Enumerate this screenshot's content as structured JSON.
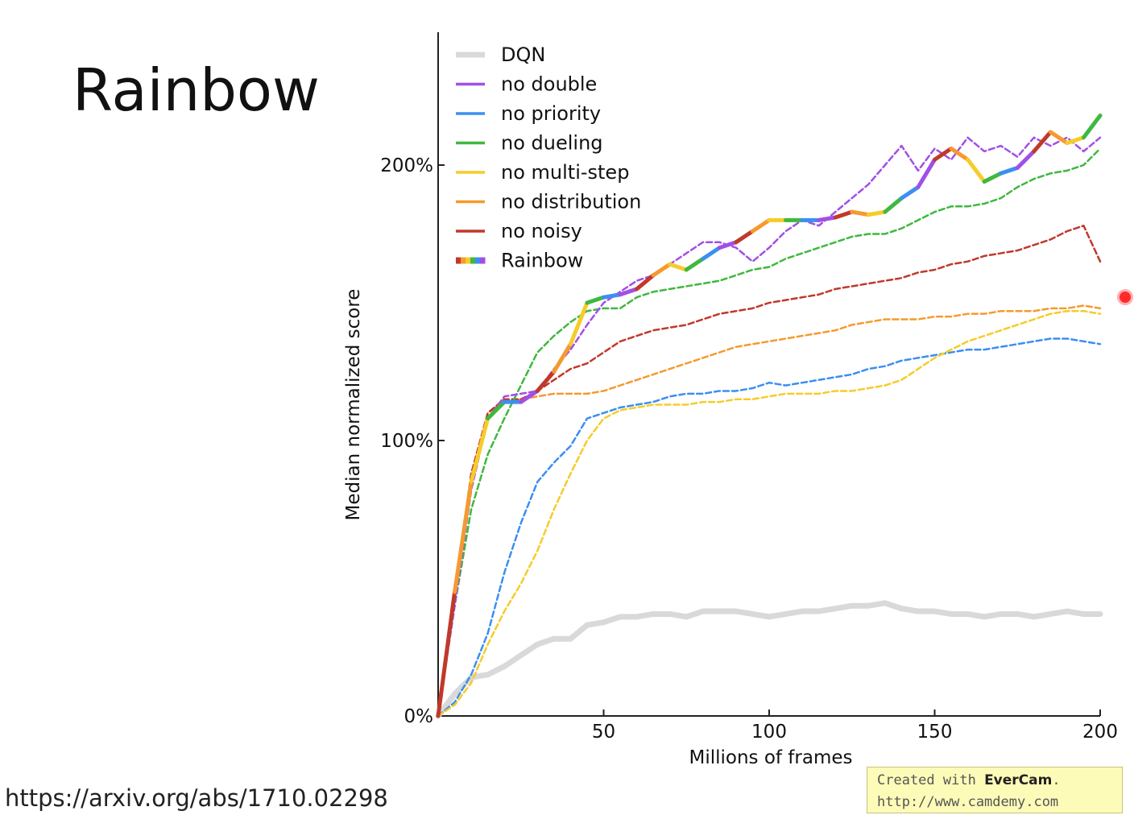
{
  "slide": {
    "title": "Rainbow",
    "source_link": "https://arxiv.org/abs/1710.02298"
  },
  "watermark": {
    "prefix": "Created with ",
    "brand": "EverCam",
    "suffix": ".",
    "url": "http://www.camdemy.com"
  },
  "chart_data": {
    "type": "line",
    "xlabel": "Millions of frames",
    "ylabel": "Median normalized score",
    "xlim": [
      0,
      200
    ],
    "ylim": [
      0,
      240
    ],
    "xticks": [
      50,
      100,
      150,
      200
    ],
    "yticks": [
      0,
      100,
      200
    ],
    "ytick_labels": [
      "0%",
      "100%",
      "200%"
    ],
    "grid": false,
    "legend_position": "top-left",
    "series": [
      {
        "name": "DQN",
        "color": "#d9d9d9",
        "style": "solid-thick",
        "x": [
          0,
          5,
          10,
          15,
          20,
          25,
          30,
          35,
          40,
          45,
          50,
          55,
          60,
          65,
          70,
          75,
          80,
          85,
          90,
          95,
          100,
          105,
          110,
          115,
          120,
          125,
          130,
          135,
          140,
          145,
          150,
          155,
          160,
          165,
          170,
          175,
          180,
          185,
          190,
          195,
          200
        ],
        "y": [
          0,
          8,
          14,
          15,
          18,
          22,
          26,
          28,
          28,
          33,
          34,
          36,
          36,
          37,
          37,
          36,
          38,
          38,
          38,
          37,
          36,
          37,
          38,
          38,
          39,
          40,
          40,
          41,
          39,
          38,
          38,
          37,
          37,
          36,
          37,
          37,
          36,
          37,
          38,
          37,
          37
        ]
      },
      {
        "name": "no double",
        "color": "#a14fe6",
        "style": "dashed",
        "x": [
          0,
          5,
          10,
          15,
          20,
          25,
          30,
          35,
          40,
          45,
          50,
          55,
          60,
          65,
          70,
          75,
          80,
          85,
          90,
          95,
          100,
          105,
          110,
          115,
          120,
          125,
          130,
          135,
          140,
          145,
          150,
          155,
          160,
          165,
          170,
          175,
          180,
          185,
          190,
          195,
          200
        ],
        "y": [
          0,
          40,
          82,
          108,
          116,
          117,
          118,
          126,
          133,
          142,
          150,
          154,
          158,
          160,
          164,
          168,
          172,
          172,
          170,
          165,
          170,
          176,
          180,
          178,
          183,
          188,
          193,
          200,
          207,
          198,
          206,
          202,
          210,
          205,
          207,
          203,
          210,
          207,
          210,
          205,
          210
        ]
      },
      {
        "name": "no priority",
        "color": "#3b8ff0",
        "style": "dashed",
        "x": [
          0,
          5,
          10,
          15,
          20,
          25,
          30,
          35,
          40,
          45,
          50,
          55,
          60,
          65,
          70,
          75,
          80,
          85,
          90,
          95,
          100,
          105,
          110,
          115,
          120,
          125,
          130,
          135,
          140,
          145,
          150,
          155,
          160,
          165,
          170,
          175,
          180,
          185,
          190,
          195,
          200
        ],
        "y": [
          0,
          5,
          15,
          30,
          52,
          70,
          85,
          92,
          98,
          108,
          110,
          112,
          113,
          114,
          116,
          117,
          117,
          118,
          118,
          119,
          121,
          120,
          121,
          122,
          123,
          124,
          126,
          127,
          129,
          130,
          131,
          132,
          133,
          133,
          134,
          135,
          136,
          137,
          137,
          136,
          135
        ]
      },
      {
        "name": "no dueling",
        "color": "#3fb83f",
        "style": "dashed",
        "x": [
          0,
          5,
          10,
          15,
          20,
          25,
          30,
          35,
          40,
          45,
          50,
          55,
          60,
          65,
          70,
          75,
          80,
          85,
          90,
          95,
          100,
          105,
          110,
          115,
          120,
          125,
          130,
          135,
          140,
          145,
          150,
          155,
          160,
          165,
          170,
          175,
          180,
          185,
          190,
          195,
          200
        ],
        "y": [
          0,
          40,
          75,
          95,
          108,
          120,
          132,
          138,
          143,
          147,
          148,
          148,
          152,
          154,
          155,
          156,
          157,
          158,
          160,
          162,
          163,
          166,
          168,
          170,
          172,
          174,
          175,
          175,
          177,
          180,
          183,
          185,
          185,
          186,
          188,
          192,
          195,
          197,
          198,
          200,
          206
        ]
      },
      {
        "name": "no multi-step",
        "color": "#f5cc2a",
        "style": "dashed",
        "x": [
          0,
          5,
          10,
          15,
          20,
          25,
          30,
          35,
          40,
          45,
          50,
          55,
          60,
          65,
          70,
          75,
          80,
          85,
          90,
          95,
          100,
          105,
          110,
          115,
          120,
          125,
          130,
          135,
          140,
          145,
          150,
          155,
          160,
          165,
          170,
          175,
          180,
          185,
          190,
          195,
          200
        ],
        "y": [
          0,
          4,
          12,
          26,
          38,
          48,
          60,
          75,
          88,
          100,
          108,
          111,
          112,
          113,
          113,
          113,
          114,
          114,
          115,
          115,
          116,
          117,
          117,
          117,
          118,
          118,
          119,
          120,
          122,
          126,
          130,
          133,
          136,
          138,
          140,
          142,
          144,
          146,
          147,
          147,
          146
        ]
      },
      {
        "name": "no distribution",
        "color": "#f59a2f",
        "style": "dashed",
        "x": [
          0,
          5,
          10,
          15,
          20,
          25,
          30,
          35,
          40,
          45,
          50,
          55,
          60,
          65,
          70,
          75,
          80,
          85,
          90,
          95,
          100,
          105,
          110,
          115,
          120,
          125,
          130,
          135,
          140,
          145,
          150,
          155,
          160,
          165,
          170,
          175,
          180,
          185,
          190,
          195,
          200
        ],
        "y": [
          0,
          45,
          88,
          110,
          114,
          115,
          116,
          117,
          117,
          117,
          118,
          120,
          122,
          124,
          126,
          128,
          130,
          132,
          134,
          135,
          136,
          137,
          138,
          139,
          140,
          142,
          143,
          144,
          144,
          144,
          145,
          145,
          146,
          146,
          147,
          147,
          147,
          148,
          148,
          149,
          148
        ]
      },
      {
        "name": "no noisy",
        "color": "#c0392b",
        "style": "dashed",
        "x": [
          0,
          5,
          10,
          15,
          20,
          25,
          30,
          35,
          40,
          45,
          50,
          55,
          60,
          65,
          70,
          75,
          80,
          85,
          90,
          95,
          100,
          105,
          110,
          115,
          120,
          125,
          130,
          135,
          140,
          145,
          150,
          155,
          160,
          165,
          170,
          175,
          180,
          185,
          190,
          195,
          200
        ],
        "y": [
          0,
          45,
          88,
          110,
          115,
          115,
          118,
          122,
          126,
          128,
          132,
          136,
          138,
          140,
          141,
          142,
          144,
          146,
          147,
          148,
          150,
          151,
          152,
          153,
          155,
          156,
          157,
          158,
          159,
          161,
          162,
          164,
          165,
          167,
          168,
          169,
          171,
          173,
          176,
          178,
          165
        ]
      },
      {
        "name": "Rainbow",
        "color": "rainbow",
        "style": "solid-thick",
        "colors": [
          "#c0392b",
          "#f59a2f",
          "#f5cc2a",
          "#3fb83f",
          "#3b8ff0",
          "#a14fe6"
        ],
        "x": [
          0,
          5,
          10,
          15,
          20,
          25,
          30,
          35,
          40,
          45,
          50,
          55,
          60,
          65,
          70,
          75,
          80,
          85,
          90,
          95,
          100,
          105,
          110,
          115,
          120,
          125,
          130,
          135,
          140,
          145,
          150,
          155,
          160,
          165,
          170,
          175,
          180,
          185,
          190,
          195,
          200
        ],
        "y": [
          0,
          45,
          85,
          108,
          114,
          114,
          118,
          125,
          135,
          150,
          152,
          153,
          155,
          160,
          164,
          162,
          166,
          170,
          172,
          176,
          180,
          180,
          180,
          180,
          181,
          183,
          182,
          183,
          188,
          192,
          202,
          206,
          202,
          194,
          197,
          199,
          205,
          212,
          208,
          210,
          218
        ]
      }
    ]
  }
}
